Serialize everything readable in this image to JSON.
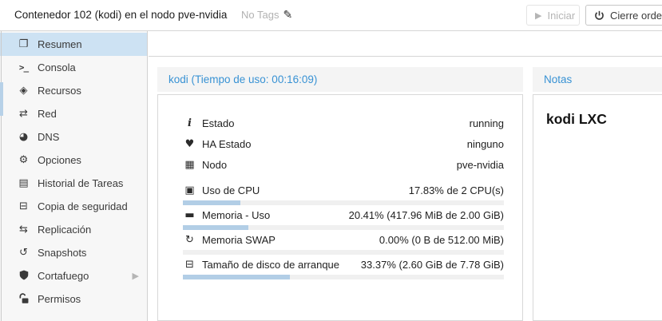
{
  "header": {
    "title": "Contenedor 102 (kodi) en el nodo pve-nvidia",
    "tags": {
      "label": "No Tags",
      "edit_icon": "pencil-icon"
    },
    "buttons": [
      {
        "label": "Iniciar",
        "icon": "play-icon",
        "enabled": false
      },
      {
        "label": "Cierre ordenado",
        "icon": "power-icon",
        "enabled": true
      }
    ]
  },
  "sidebar": {
    "items": [
      {
        "label": "Resumen",
        "icon": "book-icon",
        "selected": true
      },
      {
        "label": "Consola",
        "icon": "terminal-icon",
        "selected": false
      },
      {
        "label": "Recursos",
        "icon": "cube-icon",
        "selected": false
      },
      {
        "label": "Red",
        "icon": "network-arrows-icon",
        "selected": false
      },
      {
        "label": "DNS",
        "icon": "globe-icon",
        "selected": false
      },
      {
        "label": "Opciones",
        "icon": "gear-icon",
        "selected": false
      },
      {
        "label": "Historial de Tareas",
        "icon": "task-list-icon",
        "selected": false
      },
      {
        "label": "Copia de seguridad",
        "icon": "floppy-icon",
        "selected": false
      },
      {
        "label": "Replicación",
        "icon": "replication-icon",
        "selected": false
      },
      {
        "label": "Snapshots",
        "icon": "history-icon",
        "selected": false
      },
      {
        "label": "Cortafuego",
        "icon": "shield-icon",
        "selected": false,
        "has_submenu": true
      },
      {
        "label": "Permisos",
        "icon": "unlock-icon",
        "selected": false
      }
    ]
  },
  "summary_panel": {
    "title": "kodi (Tiempo de uso: 00:16:09)",
    "status_rows": [
      {
        "icon": "info-icon",
        "label": "Estado",
        "value": "running"
      },
      {
        "icon": "heartbeat-icon",
        "label": "HA Estado",
        "value": "ninguno"
      },
      {
        "icon": "building-icon",
        "label": "Nodo",
        "value": "pve-nvidia"
      }
    ],
    "usage_rows": [
      {
        "icon": "cpu-icon",
        "label": "Uso de CPU",
        "value": "17.83% de 2 CPU(s)",
        "percent": 17.83
      },
      {
        "icon": "memory-icon",
        "label": "Memoria - Uso",
        "value": "20.41% (417.96 MiB de 2.00 GiB)",
        "percent": 20.41
      },
      {
        "icon": "swap-icon",
        "label": "Memoria SWAP",
        "value": "0.00% (0 B de 512.00 MiB)",
        "percent": 0
      },
      {
        "icon": "disk-icon",
        "label": "Tamaño de disco de arranque",
        "value": "33.37% (2.60 GiB de 7.78 GiB)",
        "percent": 33.37
      }
    ]
  },
  "notes_panel": {
    "title": "Notas",
    "content": "kodi LXC"
  },
  "colors": {
    "accent_blue": "#3892d4",
    "sidebar_selection": "#cde2f3",
    "progress_fill": "#b2cee6",
    "progress_track": "#f0f0f0",
    "tree_selection_edge": "#b7d1e8"
  }
}
